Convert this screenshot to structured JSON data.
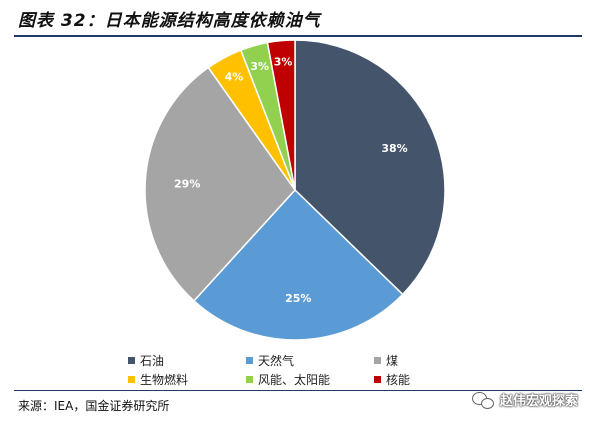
{
  "header": {
    "title": "图表 32：日本能源结构高度依赖油气"
  },
  "footer": {
    "source": "来源：IEA，国金证券研究所",
    "watermark": "赵伟宏观探索"
  },
  "chart_data": {
    "type": "pie",
    "start_angle_deg": 0,
    "direction": "clockwise",
    "slices": [
      {
        "name": "石油",
        "value": 38,
        "label": "38%",
        "color": "#44546a",
        "label_color": "#ffffff"
      },
      {
        "name": "天然气",
        "value": 25,
        "label": "25%",
        "color": "#5b9bd5",
        "label_color": "#ffffff"
      },
      {
        "name": "煤",
        "value": 29,
        "label": "29%",
        "color": "#a5a5a5",
        "label_color": "#ffffff"
      },
      {
        "name": "生物燃料",
        "value": 4,
        "label": "4%",
        "color": "#ffc000",
        "label_color": "#ffffff"
      },
      {
        "name": "风能、太阳能",
        "value": 3,
        "label": "3%",
        "color": "#92d050",
        "label_color": "#ffffff"
      },
      {
        "name": "核能",
        "value": 3,
        "label": "3%",
        "color": "#c00000",
        "label_color": "#ffffff"
      }
    ]
  }
}
